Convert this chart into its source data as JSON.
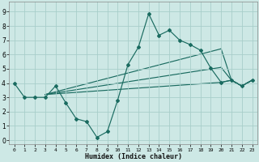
{
  "xlabel": "Humidex (Indice chaleur)",
  "bg_color": "#cde8e5",
  "grid_color": "#a8ceca",
  "line_color": "#1a6b60",
  "xlim": [
    -0.5,
    23.5
  ],
  "ylim": [
    -0.3,
    9.7
  ],
  "xticks": [
    0,
    1,
    2,
    3,
    4,
    5,
    6,
    7,
    8,
    9,
    10,
    11,
    12,
    13,
    14,
    15,
    16,
    17,
    18,
    19,
    20,
    21,
    22,
    23
  ],
  "yticks": [
    0,
    1,
    2,
    3,
    4,
    5,
    6,
    7,
    8,
    9
  ],
  "main_line": {
    "x": [
      0,
      1,
      2,
      3,
      4,
      5,
      6,
      7,
      8,
      9,
      10,
      11,
      12,
      13,
      14,
      15,
      16,
      17,
      18,
      19,
      20,
      21,
      22,
      23
    ],
    "y": [
      4.0,
      3.0,
      3.0,
      3.0,
      3.8,
      2.6,
      1.5,
      1.3,
      0.2,
      0.6,
      2.8,
      5.3,
      6.5,
      8.85,
      7.35,
      7.7,
      7.0,
      6.7,
      6.3,
      5.05,
      4.05,
      4.2,
      3.8,
      4.2
    ]
  },
  "smooth_lines": [
    {
      "x": [
        3,
        20,
        21,
        22,
        23
      ],
      "y": [
        3.2,
        6.4,
        4.2,
        3.8,
        4.2
      ]
    },
    {
      "x": [
        3,
        20,
        21,
        22,
        23
      ],
      "y": [
        3.2,
        5.1,
        4.2,
        3.8,
        4.2
      ]
    },
    {
      "x": [
        3,
        20,
        21,
        22,
        23
      ],
      "y": [
        3.2,
        4.05,
        4.2,
        3.8,
        4.2
      ]
    }
  ]
}
